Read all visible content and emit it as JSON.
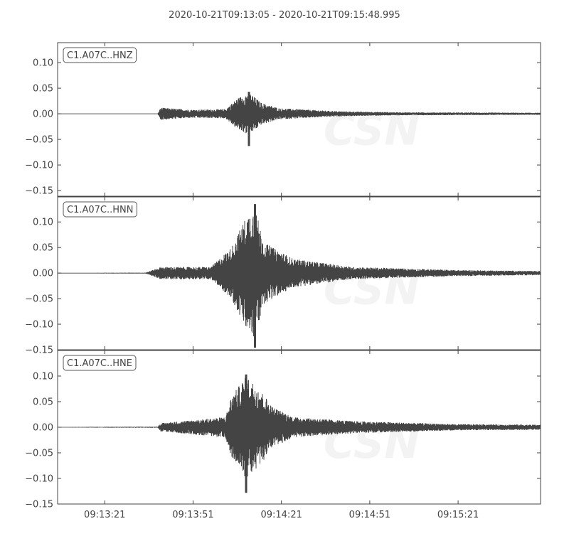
{
  "chart_data": {
    "type": "line",
    "title": "2020-10-21T09:13:05  -  2020-10-21T09:15:48.995",
    "start_time": "09:13:05",
    "end_time": "09:15:48.995",
    "x_ticks": [
      "09:13:21",
      "09:13:51",
      "09:14:21",
      "09:14:51",
      "09:15:21"
    ],
    "y_ticks": [
      "0.10",
      "0.05",
      "0.00",
      "−0.05",
      "−0.10",
      "−0.15"
    ],
    "y_tick_values": [
      0.1,
      0.05,
      0.0,
      -0.05,
      -0.1,
      -0.15
    ],
    "line_color": "#444444",
    "grid": false,
    "watermark": "CSN",
    "traces": [
      {
        "name": "C1.A07C..HNZ",
        "ylim": [
          -0.161,
          0.139
        ],
        "envelope": [
          [
            "09:13:05",
            0.0005
          ],
          [
            "09:13:39",
            0.0005
          ],
          [
            "09:13:40",
            0.012
          ],
          [
            "09:13:50",
            0.008
          ],
          [
            "09:14:02",
            0.009
          ],
          [
            "09:14:06",
            0.03
          ],
          [
            "09:14:10",
            0.042
          ],
          [
            "09:14:14",
            0.022
          ],
          [
            "09:14:20",
            0.011
          ],
          [
            "09:14:40",
            0.005
          ],
          [
            "09:15:00",
            0.003
          ],
          [
            "09:15:49",
            0.002
          ]
        ],
        "peak_max": 0.043,
        "peak_min": -0.063
      },
      {
        "name": "C1.A07C..HNN",
        "ylim": [
          -0.15,
          0.149
        ],
        "envelope": [
          [
            "09:13:05",
            0.0005
          ],
          [
            "09:13:35",
            0.001
          ],
          [
            "09:13:40",
            0.012
          ],
          [
            "09:13:57",
            0.012
          ],
          [
            "09:14:04",
            0.05
          ],
          [
            "09:14:09",
            0.11
          ],
          [
            "09:14:12",
            0.13
          ],
          [
            "09:14:15",
            0.06
          ],
          [
            "09:14:25",
            0.028
          ],
          [
            "09:14:45",
            0.012
          ],
          [
            "09:15:20",
            0.006
          ],
          [
            "09:15:49",
            0.004
          ]
        ],
        "peak_max": 0.135,
        "peak_min": -0.146
      },
      {
        "name": "C1.A07C..HNE",
        "ylim": [
          -0.15,
          0.15
        ],
        "envelope": [
          [
            "09:13:05",
            0.0007
          ],
          [
            "09:13:39",
            0.001
          ],
          [
            "09:13:40",
            0.008
          ],
          [
            "09:14:02",
            0.02
          ],
          [
            "09:14:04",
            0.06
          ],
          [
            "09:14:09",
            0.1
          ],
          [
            "09:14:13",
            0.08
          ],
          [
            "09:14:18",
            0.04
          ],
          [
            "09:14:25",
            0.02
          ],
          [
            "09:14:45",
            0.012
          ],
          [
            "09:15:20",
            0.006
          ],
          [
            "09:15:49",
            0.005
          ]
        ],
        "peak_max": 0.103,
        "peak_min": -0.128
      }
    ]
  }
}
